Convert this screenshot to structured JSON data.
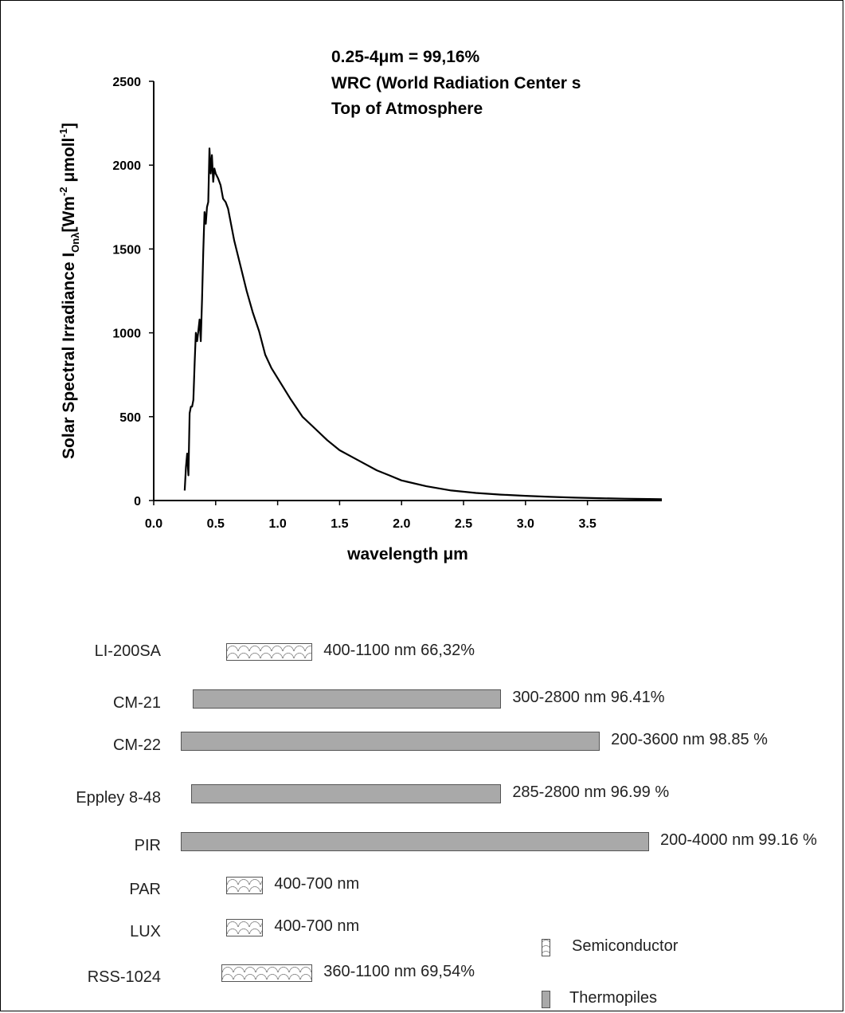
{
  "chart_data": [
    {
      "type": "line",
      "xlabel": "wavelength μm",
      "ylabel_main": "Solar Spectral Irradiance I",
      "ylabel_sub": "Onλ",
      "ylabel_bracket_open": "[Wm",
      "ylabel_sup1": "-2",
      "ylabel_mid": " μmoll",
      "ylabel_sup2": "-1",
      "ylabel_close": "]",
      "xlim": [
        0,
        4.1
      ],
      "ylim": [
        0,
        2500
      ],
      "x_ticks": [
        "0.0",
        "0.5",
        "1.0",
        "1.5",
        "2.0",
        "2.5",
        "3.0",
        "3.5"
      ],
      "y_ticks": [
        "0",
        "500",
        "1000",
        "1500",
        "2000",
        "2500"
      ],
      "annotations": [
        "0.25-4μm = 99,16%",
        "WRC (World Radiation Center s",
        "Top of Atmosphere"
      ],
      "series": [
        {
          "x": [
            0.25,
            0.26,
            0.27,
            0.28,
            0.29,
            0.3,
            0.31,
            0.32,
            0.33,
            0.34,
            0.35,
            0.36,
            0.37,
            0.38,
            0.39,
            0.4,
            0.41,
            0.42,
            0.43,
            0.44,
            0.45,
            0.46,
            0.47,
            0.48,
            0.49,
            0.5,
            0.52,
            0.54,
            0.56,
            0.58,
            0.6,
            0.65,
            0.7,
            0.75,
            0.8,
            0.85,
            0.9,
            0.95,
            1.0,
            1.1,
            1.2,
            1.3,
            1.4,
            1.5,
            1.6,
            1.7,
            1.8,
            1.9,
            2.0,
            2.2,
            2.4,
            2.6,
            2.8,
            3.0,
            3.2,
            3.4,
            3.6,
            3.8,
            4.0,
            4.1
          ],
          "y": [
            60,
            200,
            280,
            150,
            520,
            560,
            560,
            600,
            820,
            1000,
            950,
            1010,
            1080,
            950,
            1200,
            1480,
            1720,
            1650,
            1750,
            1780,
            2100,
            1950,
            2060,
            1900,
            1980,
            1950,
            1920,
            1880,
            1800,
            1780,
            1740,
            1550,
            1400,
            1250,
            1120,
            1010,
            870,
            790,
            730,
            610,
            500,
            430,
            360,
            300,
            260,
            220,
            180,
            150,
            120,
            85,
            60,
            45,
            35,
            28,
            22,
            17,
            14,
            11,
            9,
            8
          ]
        }
      ]
    },
    {
      "type": "bar",
      "orientation": "horizontal",
      "x_units": "nm",
      "categories": [
        "LI-200SA",
        "CM-21",
        "CM-22",
        "Eppley 8-48",
        "PIR",
        "PAR",
        "LUX",
        "RSS-1024"
      ],
      "bars": [
        {
          "name": "LI-200SA",
          "start": 400,
          "end": 1100,
          "label": "400-1100 nm 66,32%",
          "kind": "semiconductor"
        },
        {
          "name": "CM-21",
          "start": 300,
          "end": 2800,
          "label": "300-2800 nm 96.41%",
          "kind": "thermopile"
        },
        {
          "name": "CM-22",
          "start": 200,
          "end": 3600,
          "label": "200-3600 nm 98.85 %",
          "kind": "thermopile"
        },
        {
          "name": "Eppley 8-48",
          "start": 285,
          "end": 2800,
          "label": "285-2800 nm 96.99 %",
          "kind": "thermopile"
        },
        {
          "name": "PIR",
          "start": 200,
          "end": 4000,
          "label": "200-4000 nm 99.16 %",
          "kind": "thermopile"
        },
        {
          "name": "PAR",
          "start": 400,
          "end": 700,
          "label": "400-700 nm",
          "kind": "semiconductor"
        },
        {
          "name": "LUX",
          "start": 400,
          "end": 700,
          "label": "400-700 nm",
          "kind": "semiconductor"
        },
        {
          "name": "RSS-1024",
          "start": 360,
          "end": 1100,
          "label": "360-1100 nm 69,54%",
          "kind": "semiconductor"
        }
      ],
      "legend": [
        {
          "label": "Semiconductor",
          "kind": "semiconductor"
        },
        {
          "label": "Thermopiles",
          "kind": "thermopile"
        }
      ]
    }
  ]
}
